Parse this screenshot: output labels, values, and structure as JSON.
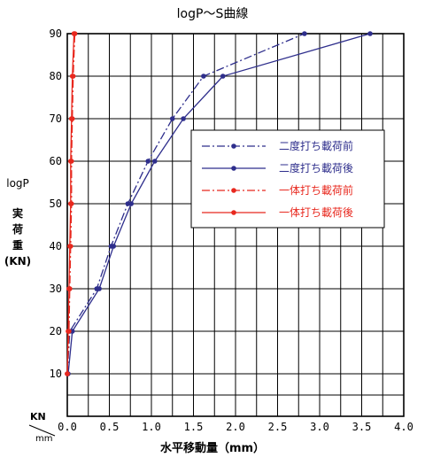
{
  "chart_data": {
    "type": "line",
    "title": "logP～S曲線",
    "xlabel": "水平移動量（mm）",
    "ylabel_lines": [
      "logP",
      "実",
      "荷",
      "重",
      "(KN)"
    ],
    "corner_y_unit": "KN",
    "corner_x_unit": "mm",
    "xlim": [
      0.0,
      4.0
    ],
    "ylim": [
      0,
      90
    ],
    "x_ticks": [
      "0.0",
      "0.5",
      "1.0",
      "1.5",
      "2.0",
      "2.5",
      "3.0",
      "3.5",
      "4.0"
    ],
    "y_ticks": [
      "10",
      "20",
      "30",
      "40",
      "50",
      "60",
      "70",
      "80",
      "90"
    ],
    "grid": true,
    "legend_position": "right-middle",
    "series": [
      {
        "name": "二度打ち載荷前",
        "color": "#2e2e8c",
        "dash": "dashdot",
        "points": [
          [
            0.0,
            10
          ],
          [
            0.03,
            20
          ],
          [
            0.35,
            30
          ],
          [
            0.52,
            40
          ],
          [
            0.72,
            50
          ],
          [
            0.96,
            60
          ],
          [
            1.25,
            70
          ],
          [
            1.62,
            80
          ],
          [
            2.82,
            90
          ]
        ]
      },
      {
        "name": "二度打ち載荷後",
        "color": "#2e2e8c",
        "dash": "solid",
        "points": [
          [
            0.01,
            10
          ],
          [
            0.06,
            20
          ],
          [
            0.38,
            30
          ],
          [
            0.55,
            40
          ],
          [
            0.76,
            50
          ],
          [
            1.04,
            60
          ],
          [
            1.38,
            70
          ],
          [
            1.85,
            80
          ],
          [
            3.6,
            90
          ]
        ]
      },
      {
        "name": "一体打ち載荷前",
        "color": "#e8281e",
        "dash": "dashdot",
        "points": [
          [
            0.0,
            10
          ],
          [
            0.02,
            20
          ],
          [
            0.03,
            30
          ],
          [
            0.04,
            40
          ],
          [
            0.05,
            50
          ],
          [
            0.05,
            60
          ],
          [
            0.06,
            70
          ],
          [
            0.07,
            80
          ],
          [
            0.09,
            90
          ]
        ]
      },
      {
        "name": "一体打ち載荷後",
        "color": "#e8281e",
        "dash": "solid",
        "points": [
          [
            0.0,
            10
          ],
          [
            0.01,
            20
          ],
          [
            0.02,
            30
          ],
          [
            0.03,
            40
          ],
          [
            0.04,
            50
          ],
          [
            0.04,
            60
          ],
          [
            0.05,
            70
          ],
          [
            0.06,
            80
          ],
          [
            0.08,
            90
          ]
        ]
      }
    ]
  }
}
